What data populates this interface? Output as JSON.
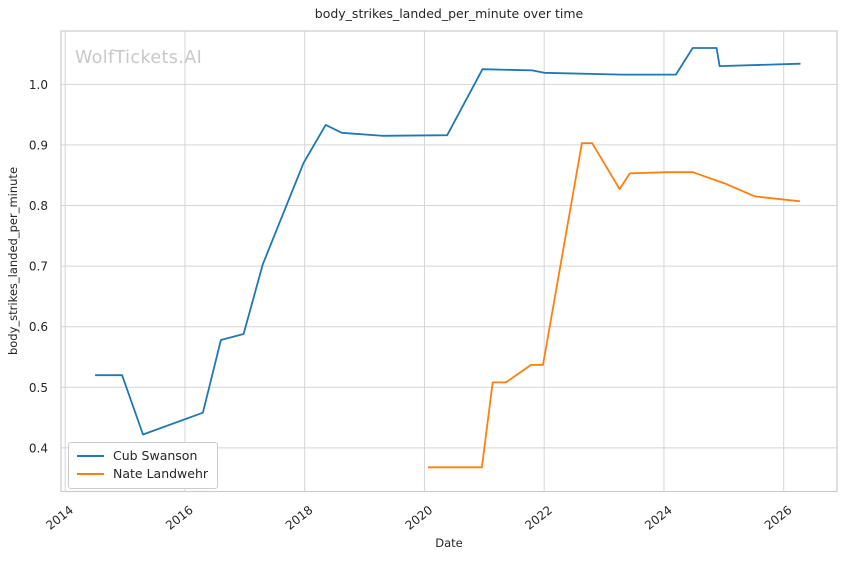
{
  "watermark": "WolfTickets.AI",
  "chart_data": {
    "type": "line",
    "title": "body_strikes_landed_per_minute over time",
    "xlabel": "Date",
    "ylabel": "body_strikes_landed_per_minute",
    "xlim": [
      2013.93,
      2026.89
    ],
    "ylim": [
      0.328,
      1.088
    ],
    "x_ticks": [
      2014,
      2016,
      2018,
      2020,
      2022,
      2024,
      2026
    ],
    "x_tick_labels": [
      "2014",
      "2016",
      "2018",
      "2020",
      "2022",
      "2024",
      "2026"
    ],
    "y_ticks": [
      0.4,
      0.5,
      0.6,
      0.7,
      0.8,
      0.9,
      1.0
    ],
    "y_tick_labels": [
      "0.4",
      "0.5",
      "0.6",
      "0.7",
      "0.8",
      "0.9",
      "1.0"
    ],
    "grid": true,
    "legend_position": "lower left",
    "colors": {
      "grid": "#d5d5d5",
      "spine": "#cccccc",
      "text": "#262626",
      "watermark": "#c8c8c8"
    },
    "series": [
      {
        "name": "Cub Swanson",
        "color": "#1f77b4",
        "points": [
          [
            2014.5,
            0.52
          ],
          [
            2014.95,
            0.52
          ],
          [
            2015.3,
            0.422
          ],
          [
            2016.3,
            0.458
          ],
          [
            2016.6,
            0.578
          ],
          [
            2016.98,
            0.588
          ],
          [
            2017.3,
            0.703
          ],
          [
            2017.98,
            0.87
          ],
          [
            2018.35,
            0.933
          ],
          [
            2018.62,
            0.92
          ],
          [
            2019.3,
            0.915
          ],
          [
            2020.38,
            0.916
          ],
          [
            2020.97,
            1.025
          ],
          [
            2021.8,
            1.023
          ],
          [
            2022.0,
            1.019
          ],
          [
            2023.3,
            1.016
          ],
          [
            2024.2,
            1.016
          ],
          [
            2024.48,
            1.06
          ],
          [
            2024.88,
            1.06
          ],
          [
            2024.93,
            1.03
          ],
          [
            2026.28,
            1.034
          ]
        ]
      },
      {
        "name": "Nate Landwehr",
        "color": "#ff7f0e",
        "points": [
          [
            2020.06,
            0.368
          ],
          [
            2020.96,
            0.368
          ],
          [
            2021.14,
            0.508
          ],
          [
            2021.36,
            0.508
          ],
          [
            2021.78,
            0.537
          ],
          [
            2021.98,
            0.537
          ],
          [
            2022.63,
            0.903
          ],
          [
            2022.8,
            0.903
          ],
          [
            2023.26,
            0.827
          ],
          [
            2023.43,
            0.853
          ],
          [
            2024.03,
            0.855
          ],
          [
            2024.48,
            0.855
          ],
          [
            2025.0,
            0.837
          ],
          [
            2025.52,
            0.815
          ],
          [
            2026.27,
            0.807
          ]
        ]
      }
    ]
  }
}
